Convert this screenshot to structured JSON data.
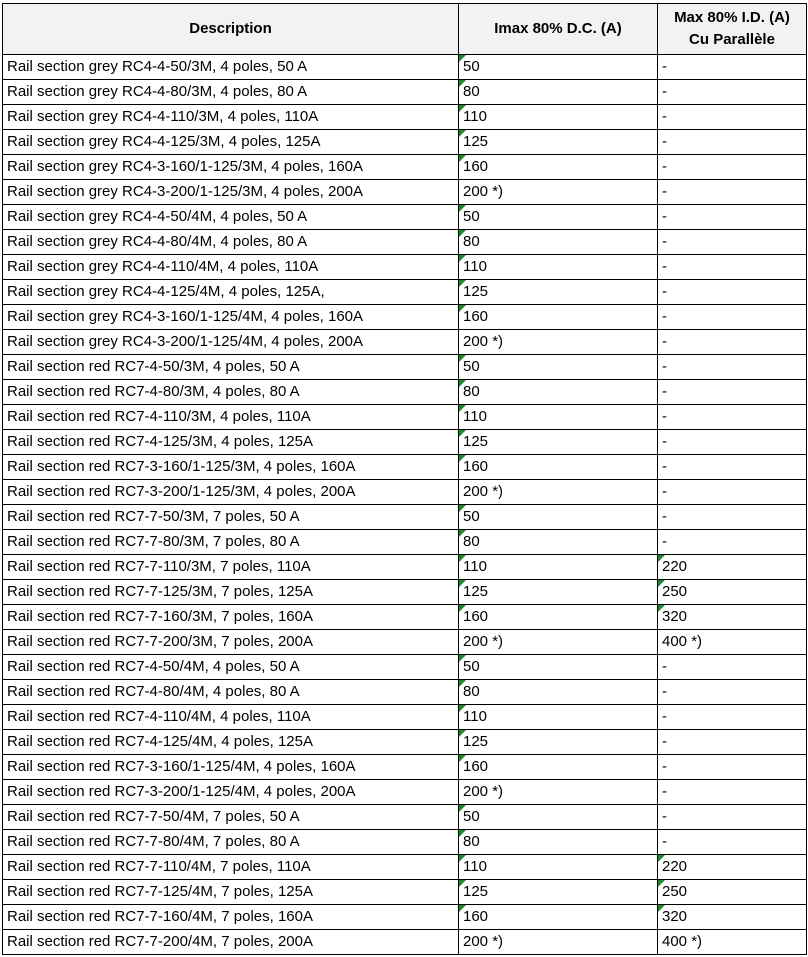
{
  "table": {
    "headers": [
      "Description",
      "Imax 80% D.C. (A)",
      "Max 80% I.D. (A) Cu Parallèle"
    ],
    "header_lines": {
      "col3_line1": "Max 80% I.D. (A)",
      "col3_line2": "Cu Parallèle"
    },
    "indicator_color": "#1e8a2e",
    "rows": [
      [
        "Rail section grey RC4-4-50/3M, 4 poles, 50 A",
        "50",
        "-"
      ],
      [
        "Rail section grey RC4-4-80/3M, 4 poles, 80 A",
        "80",
        "-"
      ],
      [
        "Rail section grey RC4-4-110/3M, 4 poles, 110A",
        "110",
        "-"
      ],
      [
        "Rail section grey RC4-4-125/3M, 4 poles, 125A",
        "125",
        "-"
      ],
      [
        "Rail section grey RC4-3-160/1-125/3M, 4 poles, 160A",
        "160",
        "-"
      ],
      [
        "Rail section grey RC4-3-200/1-125/3M, 4 poles, 200A",
        "200 *)",
        "-"
      ],
      [
        "Rail section grey RC4-4-50/4M, 4 poles, 50 A",
        "50",
        "-"
      ],
      [
        "Rail section grey RC4-4-80/4M, 4 poles, 80 A",
        "80",
        "-"
      ],
      [
        "Rail section grey RC4-4-110/4M, 4 poles, 110A",
        "110",
        "-"
      ],
      [
        "Rail section grey RC4-4-125/4M, 4 poles, 125A,",
        "125",
        "-"
      ],
      [
        "Rail section grey RC4-3-160/1-125/4M, 4 poles, 160A",
        "160",
        "-"
      ],
      [
        "Rail section grey RC4-3-200/1-125/4M, 4 poles, 200A",
        "200 *)",
        "-"
      ],
      [
        "Rail section red RC7-4-50/3M, 4 poles, 50 A",
        "50",
        "-"
      ],
      [
        "Rail section red RC7-4-80/3M, 4 poles, 80 A",
        "80",
        "-"
      ],
      [
        "Rail section red RC7-4-110/3M, 4 poles, 110A",
        "110",
        "-"
      ],
      [
        "Rail section red RC7-4-125/3M, 4 poles, 125A",
        "125",
        "-"
      ],
      [
        "Rail section red RC7-3-160/1-125/3M, 4 poles, 160A",
        "160",
        "-"
      ],
      [
        "Rail section red RC7-3-200/1-125/3M, 4 poles, 200A",
        "200 *)",
        "-"
      ],
      [
        "Rail section red RC7-7-50/3M, 7 poles, 50 A",
        "50",
        "-"
      ],
      [
        "Rail section red RC7-7-80/3M, 7 poles, 80 A",
        "80",
        "-"
      ],
      [
        "Rail section red RC7-7-110/3M, 7 poles, 110A",
        "110",
        "220"
      ],
      [
        "Rail section red RC7-7-125/3M, 7 poles, 125A",
        "125",
        "250"
      ],
      [
        "Rail section red RC7-7-160/3M, 7 poles, 160A",
        "160",
        "320"
      ],
      [
        "Rail section red RC7-7-200/3M, 7 poles, 200A",
        "200 *)",
        "400 *)"
      ],
      [
        "Rail section red RC7-4-50/4M, 4 poles, 50 A",
        "50",
        "-"
      ],
      [
        "Rail section red RC7-4-80/4M, 4 poles, 80 A",
        "80",
        "-"
      ],
      [
        "Rail section red RC7-4-110/4M, 4 poles, 110A",
        "110",
        "-"
      ],
      [
        "Rail section red RC7-4-125/4M, 4 poles, 125A",
        "125",
        "-"
      ],
      [
        "Rail section red RC7-3-160/1-125/4M, 4 poles, 160A",
        "160",
        "-"
      ],
      [
        "Rail section red RC7-3-200/1-125/4M, 4 poles, 200A",
        "200 *)",
        "-"
      ],
      [
        "Rail section red RC7-7-50/4M, 7 poles, 50 A",
        "50",
        "-"
      ],
      [
        "Rail section red RC7-7-80/4M, 7 poles, 80 A",
        "80",
        "-"
      ],
      [
        "Rail section red RC7-7-110/4M, 7 poles, 110A",
        "110",
        "220"
      ],
      [
        "Rail section red RC7-7-125/4M, 7 poles, 125A",
        "125",
        "250"
      ],
      [
        "Rail section red RC7-7-160/4M, 7 poles, 160A",
        "160",
        "320"
      ],
      [
        "Rail section red RC7-7-200/4M, 7 poles, 200A",
        "200 *)",
        "400 *)"
      ]
    ]
  }
}
